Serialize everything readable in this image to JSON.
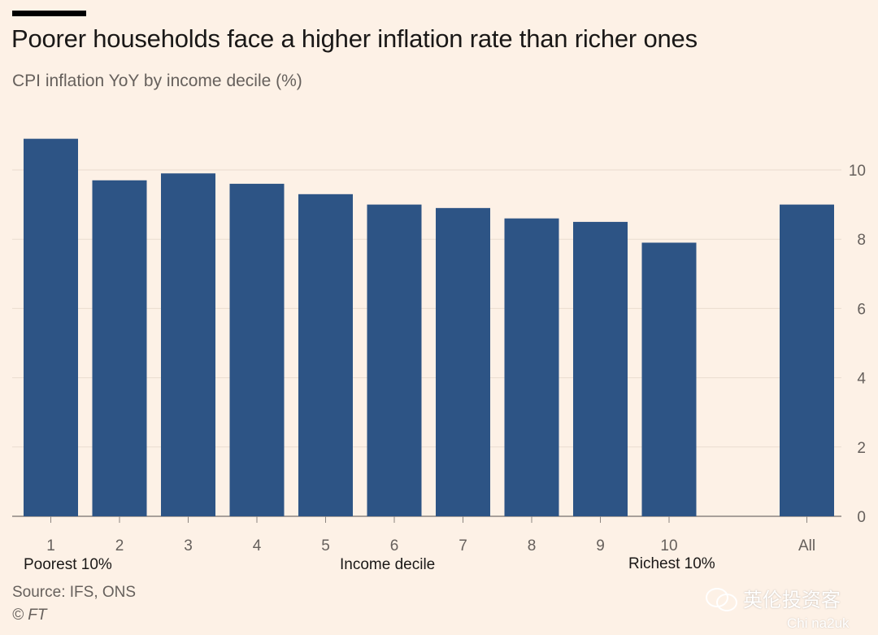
{
  "header": {
    "title": "Poorer households face a higher inflation rate than richer ones",
    "subtitle": "CPI inflation YoY by income decile (%)"
  },
  "chart_data": {
    "type": "bar",
    "categories": [
      "1",
      "2",
      "3",
      "4",
      "5",
      "6",
      "7",
      "8",
      "9",
      "10",
      "All"
    ],
    "values": [
      10.9,
      9.7,
      9.9,
      9.6,
      9.3,
      9.0,
      8.9,
      8.6,
      8.5,
      7.9,
      9.0
    ],
    "title": "Poorer households face a higher inflation rate than richer ones",
    "subtitle": "CPI inflation YoY by income decile (%)",
    "xlabel": "Income decile",
    "ylabel": "",
    "ylim": [
      0,
      11
    ],
    "yticks": [
      "0",
      "2",
      "4",
      "6",
      "8",
      "10"
    ],
    "grid": true,
    "y_axis_side": "right",
    "bar_color": "#2d5485",
    "axis_annotations": {
      "left": "Poorest 10%",
      "right": "Richest 10%"
    }
  },
  "footer": {
    "source": "Source: IFS, ONS",
    "copyright": "© FT"
  },
  "watermark": {
    "text": "英伦投资客",
    "subtext": "Chi na2uk"
  }
}
